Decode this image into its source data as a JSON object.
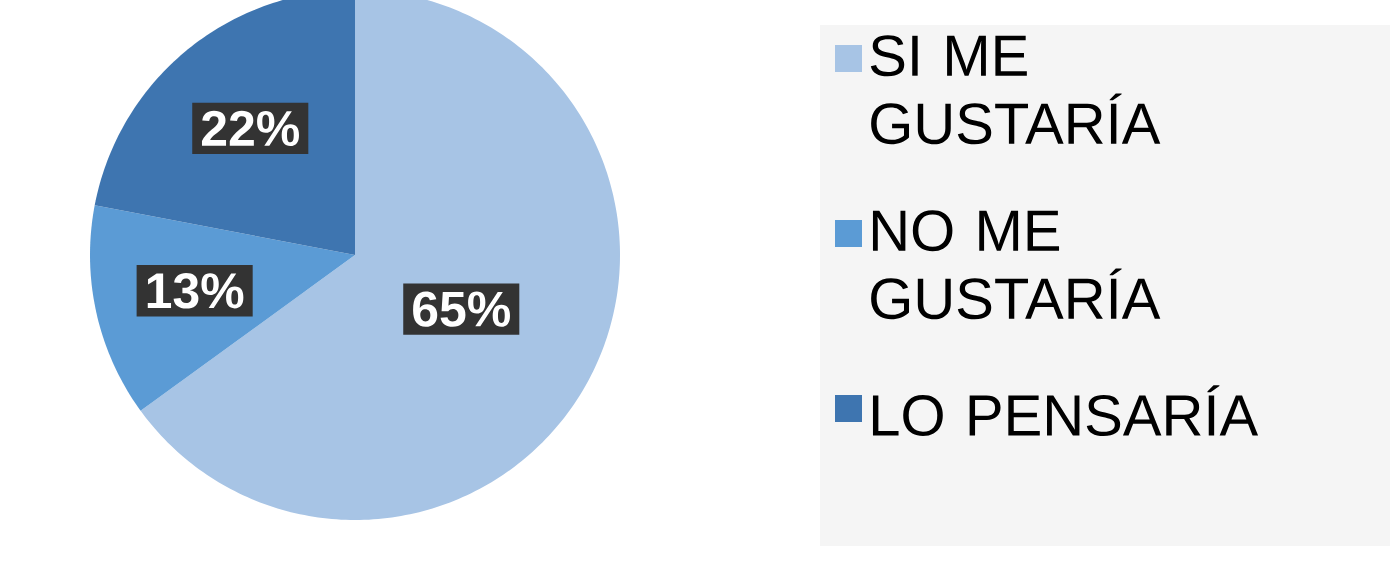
{
  "chart_data": {
    "type": "pie",
    "categories": [
      "SI ME GUSTARÍA",
      "NO ME GUSTARÍA",
      "LO PENSARÍA"
    ],
    "values": [
      65,
      13,
      22
    ],
    "value_labels": [
      "65%",
      "13%",
      "22%"
    ],
    "colors": [
      "#a7c4e5",
      "#5b9bd5",
      "#3e75b0"
    ],
    "legend": "right"
  }
}
